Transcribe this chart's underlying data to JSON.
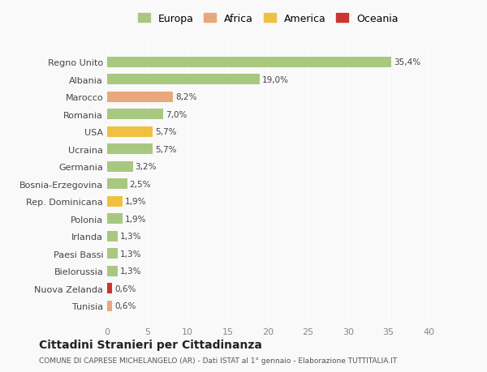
{
  "countries": [
    "Tunisia",
    "Nuova Zelanda",
    "Bielorussia",
    "Paesi Bassi",
    "Irlanda",
    "Polonia",
    "Rep. Dominicana",
    "Bosnia-Erzegovina",
    "Germania",
    "Ucraina",
    "USA",
    "Romania",
    "Marocco",
    "Albania",
    "Regno Unito"
  ],
  "values": [
    0.6,
    0.6,
    1.3,
    1.3,
    1.3,
    1.9,
    1.9,
    2.5,
    3.2,
    5.7,
    5.7,
    7.0,
    8.2,
    19.0,
    35.4
  ],
  "labels": [
    "0,6%",
    "0,6%",
    "1,3%",
    "1,3%",
    "1,3%",
    "1,9%",
    "1,9%",
    "2,5%",
    "3,2%",
    "5,7%",
    "5,7%",
    "7,0%",
    "8,2%",
    "19,0%",
    "35,4%"
  ],
  "colors": [
    "#e8a87c",
    "#cc3333",
    "#a8c880",
    "#a8c880",
    "#a8c880",
    "#a8c880",
    "#f0c040",
    "#a8c880",
    "#a8c880",
    "#a8c880",
    "#f0c040",
    "#a8c880",
    "#e8a87c",
    "#a8c880",
    "#a8c880"
  ],
  "continent_colors": {
    "Europa": "#a8c880",
    "Africa": "#e8a87c",
    "America": "#f0c040",
    "Oceania": "#cc3333"
  },
  "legend_labels": [
    "Europa",
    "Africa",
    "America",
    "Oceania"
  ],
  "xlim": [
    0,
    40
  ],
  "xticks": [
    0,
    5,
    10,
    15,
    20,
    25,
    30,
    35,
    40
  ],
  "title": "Cittadini Stranieri per Cittadinanza",
  "subtitle": "COMUNE DI CAPRESE MICHELANGELO (AR) - Dati ISTAT al 1° gennaio - Elaborazione TUTTITALIA.IT",
  "bg_color": "#f9f9f9",
  "grid_color": "#ffffff",
  "bar_height": 0.6
}
